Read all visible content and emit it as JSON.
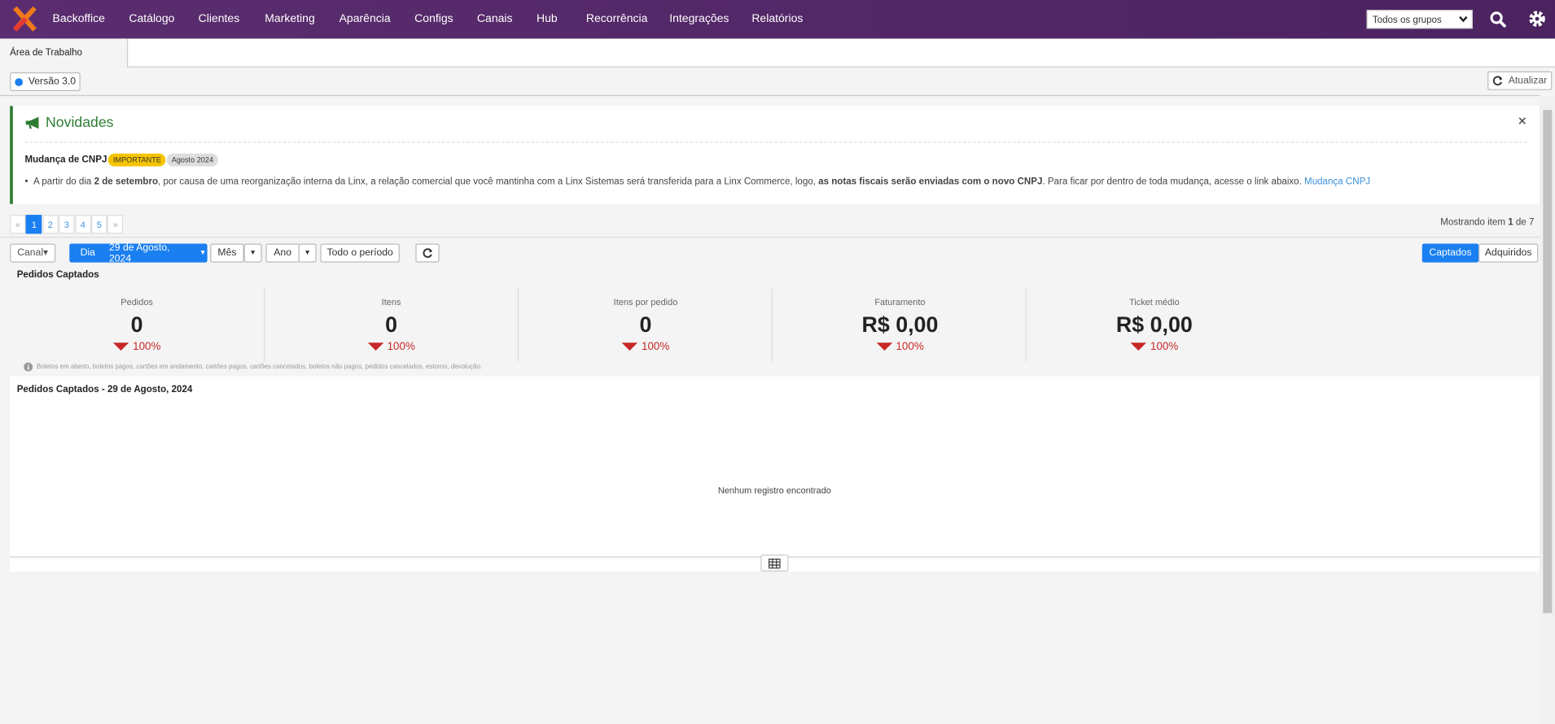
{
  "nav": {
    "items": [
      "Backoffice",
      "Catálogo",
      "Clientes",
      "Marketing",
      "Aparência",
      "Configs",
      "Canais",
      "Hub",
      "Recorrência",
      "Integrações",
      "Relatórios"
    ],
    "group_select": "Todos os grupos"
  },
  "tab": "Área de Trabalho",
  "version": "Versão 3.0",
  "refresh": "Atualizar",
  "news": {
    "title": "Novidades",
    "item_title": "Mudança de CNPJ",
    "badge": "IMPORTANTE",
    "date": "Agosto 2024",
    "text_parts": [
      "A partir do dia ",
      "2 de setembro",
      ", por causa de uma reorganização interna da Linx, a relação comercial que você mantinha com a Linx Sistemas será transferida para a Linx Commerce, logo, ",
      "as notas fiscais serão enviadas com o novo CNPJ",
      ". Para ficar por dentro de toda mudança, acesse o link abaixo. ",
      "Mudança CNPJ"
    ]
  },
  "pagination": {
    "pages": [
      "«",
      "1",
      "2",
      "3",
      "4",
      "5",
      "»"
    ],
    "showing": [
      "Mostrando item ",
      "1",
      " de 7"
    ]
  },
  "filters": {
    "canal": "Canal",
    "dia": "Dia",
    "date": "29 de Agosto, 2024",
    "mes": "Mês",
    "ano": "Ano",
    "todo": "Todo o período",
    "captados": "Captados",
    "adquiridos": "Adquiridos"
  },
  "section_title": "Pedidos Captados",
  "metrics": [
    {
      "label": "Pedidos",
      "value": "0",
      "change": "100%"
    },
    {
      "label": "Itens",
      "value": "0",
      "change": "100%"
    },
    {
      "label": "Itens por pedido",
      "value": "0",
      "change": "100%"
    },
    {
      "label": "Faturamento",
      "value": "R$ 0,00",
      "change": "100%"
    },
    {
      "label": "Ticket médio",
      "value": "R$ 0,00",
      "change": "100%"
    }
  ],
  "note": "Boletos em aberto, boletos pagos, cartões em andamento, cartões pagos, cartões cancelados, boletos não pagos, pedidos cancelados, estorno, devolução.",
  "table_title": "Pedidos Captados - 29 de Agosto, 2024",
  "empty": "Nenhum registro encontrado"
}
